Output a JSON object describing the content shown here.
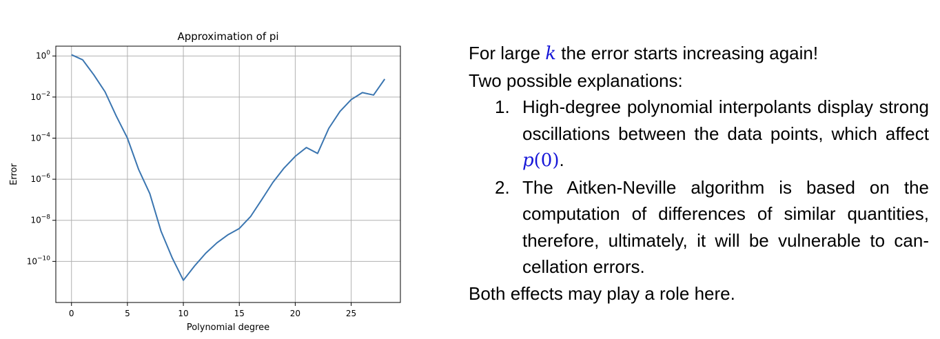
{
  "chart_data": {
    "type": "line",
    "title": "Approximation of pi",
    "xlabel": "Polynomial degree",
    "ylabel": "Error",
    "x_scale": "linear",
    "y_scale": "log",
    "xlim": [
      -1.4,
      29.4
    ],
    "ylim": [
      1e-12,
      3
    ],
    "xticks": [
      0,
      5,
      10,
      15,
      20,
      25
    ],
    "yticks": [
      1,
      0.01,
      0.0001,
      1e-06,
      1e-08,
      1e-10
    ],
    "ytick_exponents": [
      "0",
      "−2",
      "−4",
      "−6",
      "−8",
      "−10"
    ],
    "ytick_base": "10",
    "grid": true,
    "line_color": "#3a75b0",
    "x": [
      0,
      1,
      2,
      3,
      4,
      5,
      6,
      7,
      8,
      9,
      10,
      11,
      12,
      13,
      14,
      15,
      16,
      17,
      18,
      19,
      20,
      21,
      22,
      23,
      24,
      25,
      26,
      27,
      28
    ],
    "y": [
      1.15,
      0.65,
      0.12,
      0.018,
      0.0012,
      0.0001,
      3e-06,
      2e-07,
      3e-09,
      1.5e-10,
      1.2e-11,
      6e-11,
      2.5e-10,
      8e-10,
      2e-09,
      4e-09,
      1.5e-08,
      1e-07,
      7e-07,
      3.5e-06,
      1.3e-05,
      3.5e-05,
      1.8e-05,
      0.0003,
      0.002,
      0.0075,
      0.0165,
      0.0125,
      0.075
    ]
  },
  "text": {
    "line1_a": "For large ",
    "line1_var": "k",
    "line1_b": " the error starts increasing again!",
    "line2": "Two possible explanations:",
    "items": [
      {
        "num": "1.",
        "text_a": "High-degree polynomial interpolants display strong oscillations between the data points, which affect ",
        "math_fn": "p",
        "math_arg": "(0)",
        "text_b": "."
      },
      {
        "num": "2.",
        "text": "The Aitken-Neville algorithm is based on the computation of differences of similar quantities, therefore, ultimately, it will be vulnerable to can-cellation errors."
      }
    ],
    "line_last": "Both effects may play a role here."
  }
}
